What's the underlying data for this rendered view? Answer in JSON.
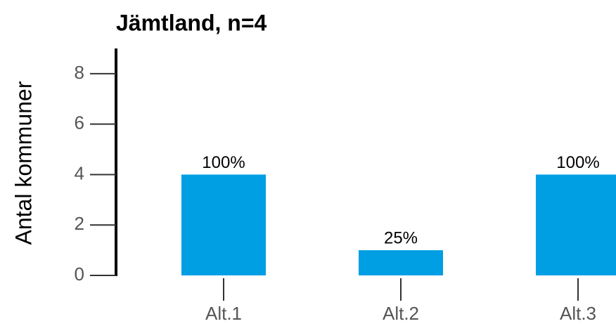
{
  "chart_data": {
    "type": "bar",
    "title": "Jämtland, n=4",
    "y_label": "Antal kommuner",
    "categories": [
      "Alt.1",
      "Alt.2",
      "Alt.3"
    ],
    "values": [
      4,
      1,
      4
    ],
    "annotations": [
      "100%",
      "25%",
      "100%"
    ],
    "color": "#009fe3",
    "ylim": [
      0,
      9
    ],
    "yticks": [
      0,
      2,
      4,
      6,
      8
    ],
    "grid": false
  }
}
